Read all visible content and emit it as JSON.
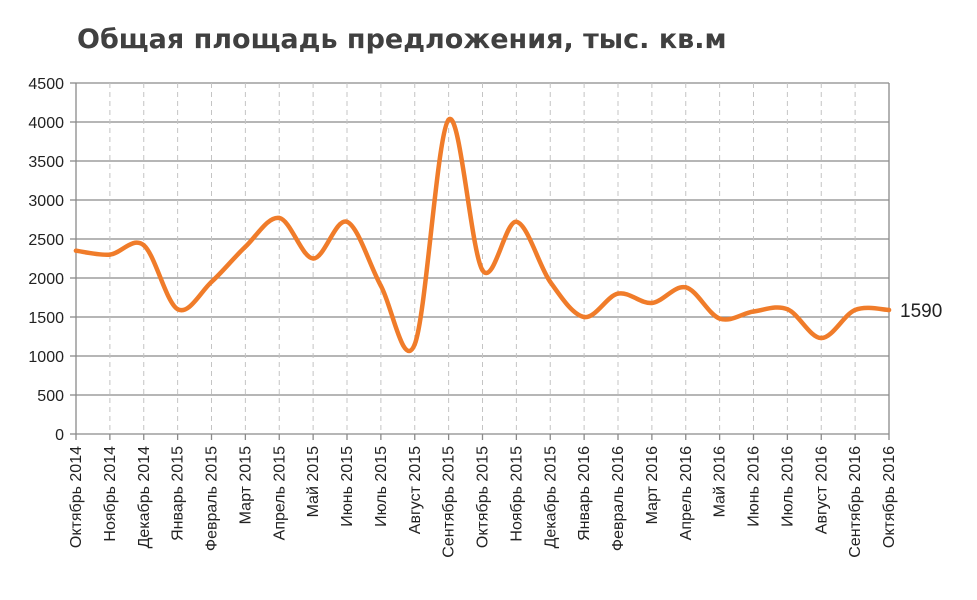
{
  "chart_data": {
    "type": "line",
    "title": "Общая площадь предложения, тыс. кв.м",
    "xlabel": "",
    "ylabel": "",
    "ylim": [
      0,
      4500
    ],
    "yticks": [
      0,
      500,
      1000,
      1500,
      2000,
      2500,
      3000,
      3500,
      4000,
      4500
    ],
    "grid": true,
    "categories": [
      "Октябрь 2014",
      "Ноябрь 2014",
      "Декабрь 2014",
      "Январь 2015",
      "Февраль 2015",
      "Март 2015",
      "Апрель 2015",
      "Май 2015",
      "Июнь 2015",
      "Июль 2015",
      "Август 2015",
      "Сентябрь 2015",
      "Октябрь 2015",
      "Ноябрь 2015",
      "Декабрь 2015",
      "Январь 2016",
      "Февраль 2016",
      "Март 2016",
      "Апрель 2016",
      "Май 2016",
      "Июнь 2016",
      "Июль 2016",
      "Август 2016",
      "Сентябрь 2016",
      "Октябрь 2016"
    ],
    "series": [
      {
        "color": "#f07c2a",
        "values": [
          2350,
          2300,
          2420,
          1600,
          1950,
          2400,
          2770,
          2250,
          2720,
          1900,
          1150,
          4030,
          2100,
          2720,
          1950,
          1500,
          1800,
          1680,
          1880,
          1480,
          1570,
          1600,
          1230,
          1590,
          1590
        ]
      }
    ],
    "end_label": "1590"
  }
}
